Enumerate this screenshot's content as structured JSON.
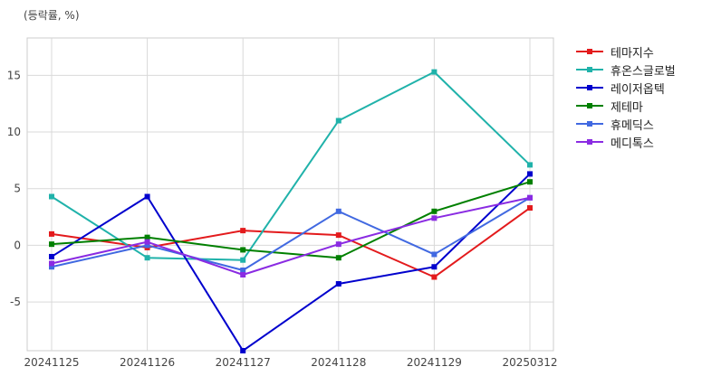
{
  "chart_data": {
    "type": "line",
    "unit_label": "(등락률, %)",
    "categories": [
      "20241125",
      "20241126",
      "20241127",
      "20241128",
      "20241129",
      "20250312"
    ],
    "ylim": [
      -9.3,
      18.3
    ],
    "yticks": [
      -5,
      0,
      5,
      10,
      15
    ],
    "grid": true,
    "legend_position": "right",
    "series": [
      {
        "name": "테마지수",
        "color": "#e31a1c",
        "values": [
          1.0,
          -0.2,
          1.3,
          0.9,
          -2.8,
          3.3
        ]
      },
      {
        "name": "휴온스글로벌",
        "color": "#20b2aa",
        "values": [
          4.3,
          -1.1,
          -1.3,
          11.0,
          15.3,
          7.1
        ]
      },
      {
        "name": "레이저옵텍",
        "color": "#0000cd",
        "values": [
          -1.0,
          4.3,
          -9.3,
          -3.4,
          -1.9,
          6.3
        ]
      },
      {
        "name": "제테마",
        "color": "#008000",
        "values": [
          0.1,
          0.7,
          -0.4,
          -1.1,
          3.0,
          5.6
        ]
      },
      {
        "name": "휴메딕스",
        "color": "#4169e1",
        "values": [
          -1.9,
          0.0,
          -2.2,
          3.0,
          -0.8,
          4.2
        ]
      },
      {
        "name": "메디톡스",
        "color": "#8a2be2",
        "values": [
          -1.6,
          0.3,
          -2.6,
          0.1,
          2.4,
          4.2
        ]
      }
    ]
  }
}
